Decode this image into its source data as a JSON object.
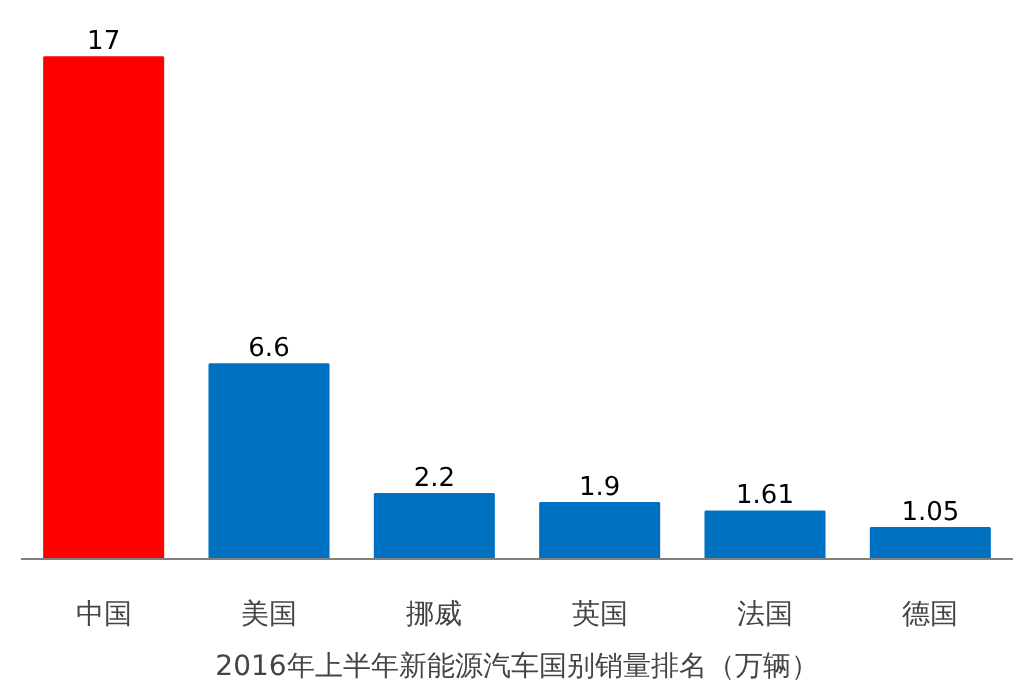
{
  "chart_data": {
    "type": "bar",
    "title": "2016年上半年新能源汽车国别销量排名（万辆）",
    "categories": [
      "中国",
      "美国",
      "挪威",
      "英国",
      "法国",
      "德国"
    ],
    "values": [
      17,
      6.6,
      2.2,
      1.9,
      1.61,
      1.05
    ],
    "colors": [
      "#ff0000",
      "#0070c0",
      "#0070c0",
      "#0070c0",
      "#0070c0",
      "#0070c0"
    ],
    "data_labels": true
  }
}
